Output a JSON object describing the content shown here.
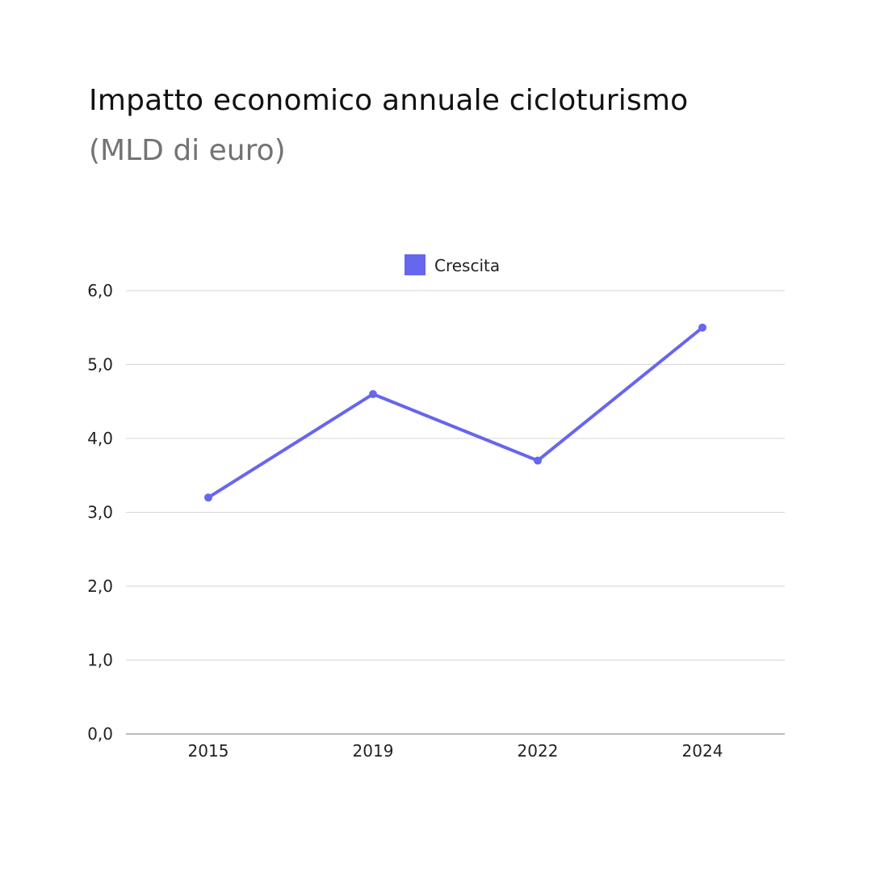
{
  "title": "Impatto economico annuale cicloturismo",
  "subtitle": "(MLD di euro)",
  "colors": {
    "series": "#6666ee",
    "grid": "#d4d4d4",
    "axis": "#777777",
    "text": "#222222"
  },
  "chart_data": {
    "type": "line",
    "categories": [
      "2015",
      "2019",
      "2022",
      "2024"
    ],
    "series": [
      {
        "name": "Crescita",
        "values": [
          3.2,
          4.6,
          3.7,
          5.5
        ]
      }
    ],
    "ylim": [
      0,
      6
    ],
    "yticks": [
      0,
      1,
      2,
      3,
      4,
      5,
      6
    ],
    "ytick_labels": [
      "0,0",
      "1,0",
      "2,0",
      "3,0",
      "4,0",
      "5,0",
      "6,0"
    ],
    "grid": true,
    "legend": "top-center"
  }
}
